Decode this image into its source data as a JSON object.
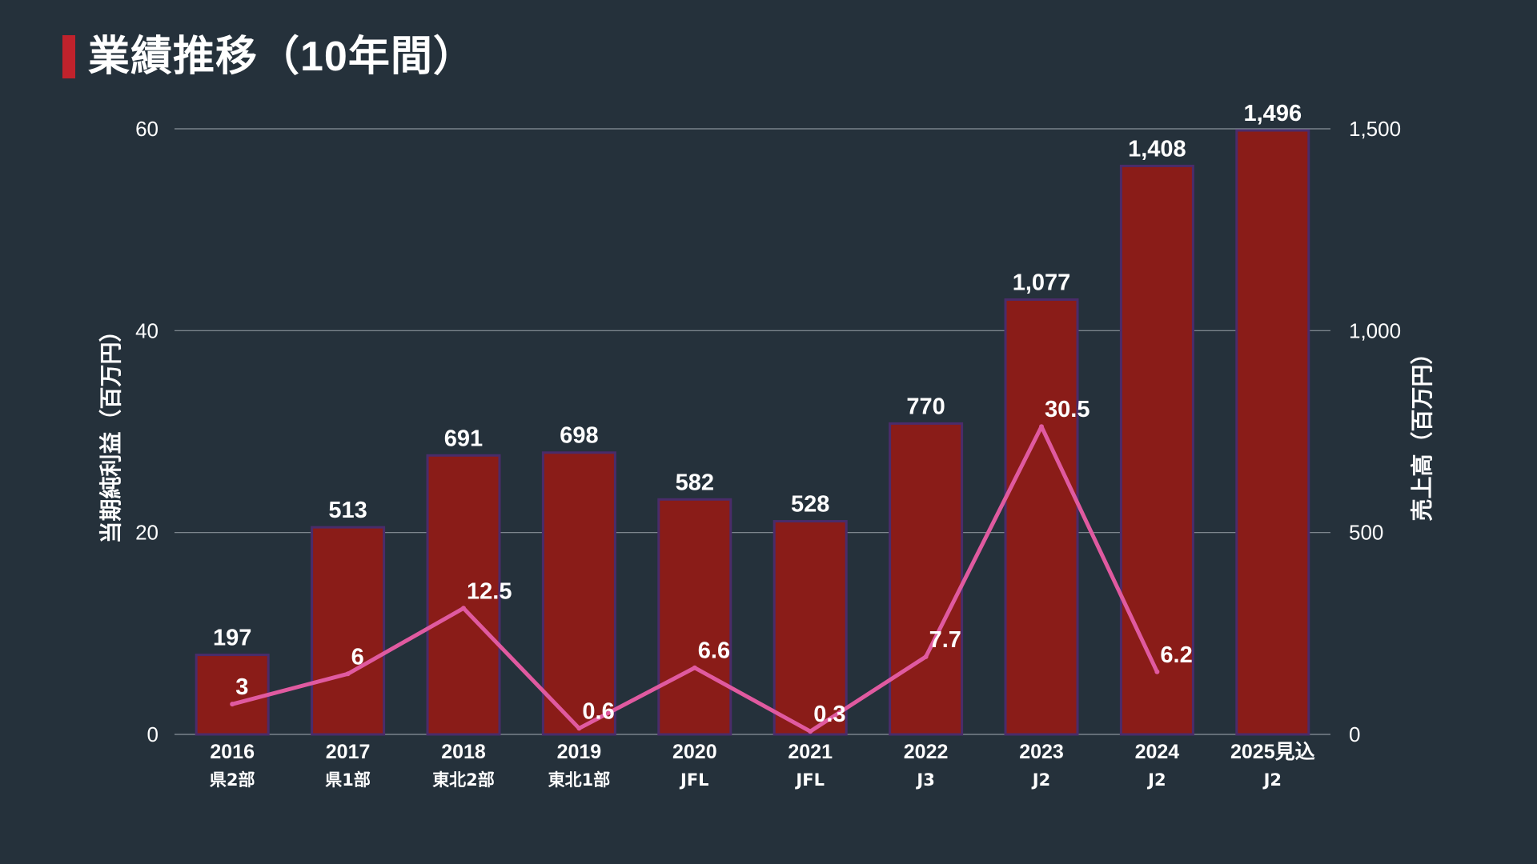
{
  "title": "業績推移（10年間）",
  "colors": {
    "background": "#25313b",
    "accent": "#c0222c",
    "bar_fill": "#8a1c18",
    "bar_stroke": "#4a2c6a",
    "line": "#e05aa0",
    "grid": "#8a939b",
    "text": "#ffffff"
  },
  "chart_data": {
    "type": "bar",
    "categories": [
      "2016",
      "2017",
      "2018",
      "2019",
      "2020",
      "2021",
      "2022",
      "2023",
      "2024",
      "2025見込"
    ],
    "category_sublabels": [
      "県2部",
      "県1部",
      "東北2部",
      "東北1部",
      "JFL",
      "JFL",
      "J3",
      "J2",
      "J2",
      "J2"
    ],
    "series": [
      {
        "type": "bar",
        "axis": "right",
        "values": [
          197,
          513,
          691,
          698,
          582,
          528,
          770,
          1077,
          1408,
          1496
        ],
        "labels": [
          "197",
          "513",
          "691",
          "698",
          "582",
          "528",
          "770",
          "1,077",
          "1,408",
          "1,496"
        ]
      },
      {
        "type": "line",
        "axis": "left",
        "values": [
          3,
          6,
          12.5,
          0.6,
          6.6,
          0.3,
          7.7,
          30.5,
          6.2,
          null
        ],
        "labels": [
          "3",
          "6",
          "12.5",
          "0.6",
          "6.6",
          "0.3",
          "7.7",
          "30.5",
          "6.2",
          ""
        ]
      }
    ],
    "y_left": {
      "label": "当期純利益（百万円）",
      "range": [
        0,
        60
      ],
      "ticks": [
        "0",
        "20",
        "40",
        "60"
      ]
    },
    "y_right": {
      "label": "売上高（百万円）",
      "range": [
        0,
        1500
      ],
      "ticks": [
        "0",
        "500",
        "1,000",
        "1,500"
      ]
    },
    "grid": true
  }
}
